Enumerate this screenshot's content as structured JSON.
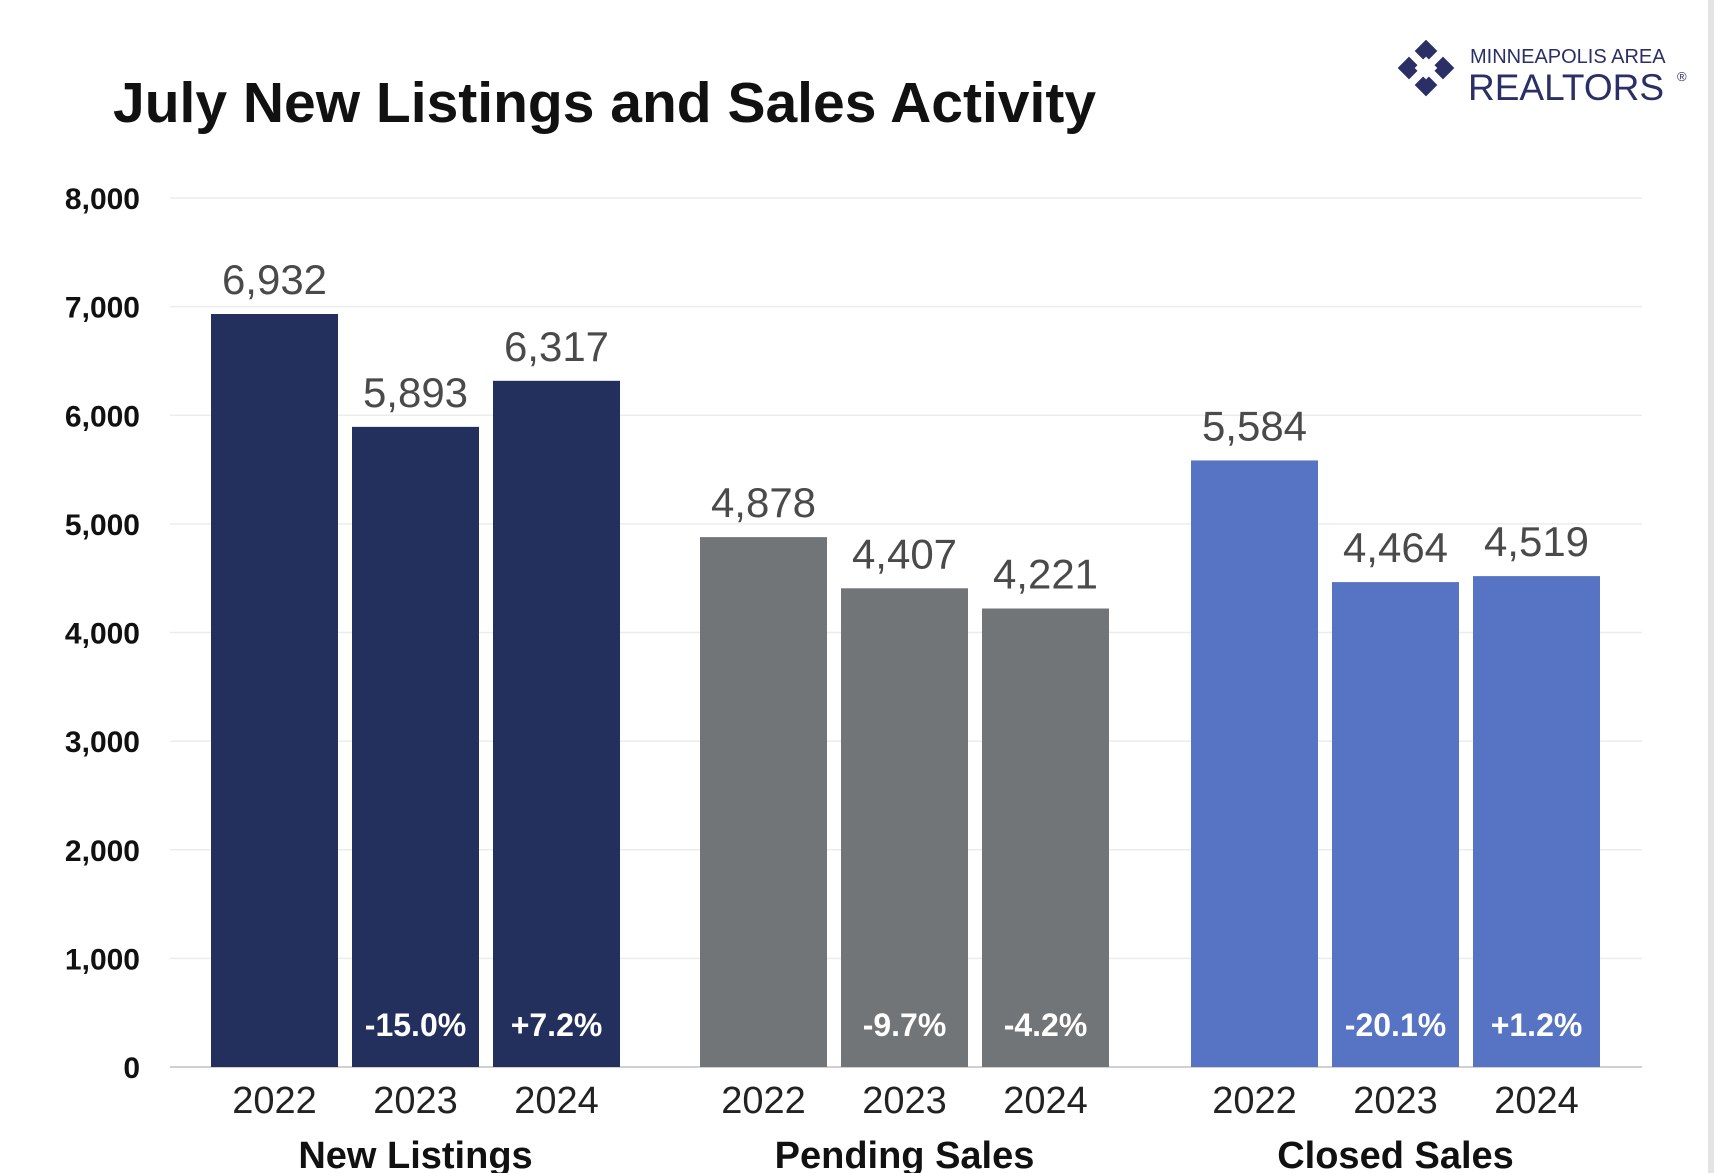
{
  "logo": {
    "line1": "MINNEAPOLIS AREA",
    "line2": "REALTORS",
    "mark": "®",
    "icon": "cross-diamond-icon"
  },
  "chart_data": {
    "type": "bar",
    "title": "July New Listings and Sales Activity",
    "xlabel": "",
    "ylabel": "",
    "ylim": [
      0,
      8000
    ],
    "yticks": [
      0,
      1000,
      2000,
      3000,
      4000,
      5000,
      6000,
      7000,
      8000
    ],
    "ytick_labels": [
      "0",
      "1,000",
      "2,000",
      "3,000",
      "4,000",
      "5,000",
      "6,000",
      "7,000",
      "8,000"
    ],
    "grid": true,
    "groups": [
      {
        "name": "New Listings",
        "color": "#232f5c",
        "bars": [
          {
            "year": "2022",
            "value": 6932,
            "label": "6,932",
            "change": ""
          },
          {
            "year": "2023",
            "value": 5893,
            "label": "5,893",
            "change": "-15.0%"
          },
          {
            "year": "2024",
            "value": 6317,
            "label": "6,317",
            "change": "+7.2%"
          }
        ]
      },
      {
        "name": "Pending Sales",
        "color": "#717577",
        "bars": [
          {
            "year": "2022",
            "value": 4878,
            "label": "4,878",
            "change": ""
          },
          {
            "year": "2023",
            "value": 4407,
            "label": "4,407",
            "change": "-9.7%"
          },
          {
            "year": "2024",
            "value": 4221,
            "label": "4,221",
            "change": "-4.2%"
          }
        ]
      },
      {
        "name": "Closed Sales",
        "color": "#5673c4",
        "bars": [
          {
            "year": "2022",
            "value": 5584,
            "label": "5,584",
            "change": ""
          },
          {
            "year": "2023",
            "value": 4464,
            "label": "4,464",
            "change": "-20.1%"
          },
          {
            "year": "2024",
            "value": 4519,
            "label": "4,519",
            "change": "+1.2%"
          }
        ]
      }
    ]
  }
}
